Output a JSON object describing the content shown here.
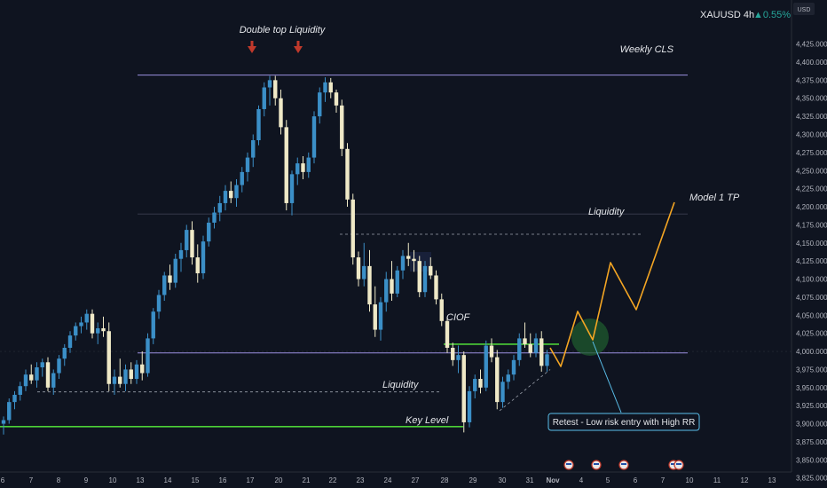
{
  "header": {
    "symbol": "XAUUSD 4h",
    "change": "▲0.55%",
    "currency": "USD"
  },
  "colors": {
    "background": "#0f1420",
    "bull_candle": "#3b8fc7",
    "bear_candle": "#efe9c7",
    "purple_line": "#9c8fe0",
    "green_line": "#4cd137",
    "projection": "#f5a623",
    "callout_border": "#5bc0eb",
    "entry_zone": "#1f5a2e",
    "marker_red": "#c0392b"
  },
  "chart_data": {
    "type": "candlestick",
    "title": "",
    "y_range": [
      3810,
      4445
    ],
    "y_ticks": [
      3825,
      3850,
      3875,
      3900,
      3925,
      3950,
      3975,
      4000,
      4025,
      4050,
      4075,
      4100,
      4125,
      4150,
      4175,
      4200,
      4225,
      4250,
      4275,
      4300,
      4325,
      4350,
      4375,
      4400,
      4425
    ],
    "x_ticks": [
      "6",
      "7",
      "8",
      "9",
      "10",
      "13",
      "14",
      "15",
      "16",
      "17",
      "20",
      "21",
      "22",
      "23",
      "24",
      "27",
      "28",
      "29",
      "30",
      "31",
      "Nov",
      "4",
      "5",
      "6",
      "7",
      "10",
      "11",
      "12",
      "13"
    ],
    "candles": [
      {
        "t": 0,
        "o": 3900,
        "h": 3910,
        "l": 3885,
        "c": 3905
      },
      {
        "t": 1,
        "o": 3905,
        "h": 3935,
        "l": 3900,
        "c": 3930
      },
      {
        "t": 2,
        "o": 3930,
        "h": 3945,
        "l": 3920,
        "c": 3940
      },
      {
        "t": 3,
        "o": 3940,
        "h": 3958,
        "l": 3932,
        "c": 3952
      },
      {
        "t": 4,
        "o": 3952,
        "h": 3975,
        "l": 3945,
        "c": 3968
      },
      {
        "t": 5,
        "o": 3968,
        "h": 3982,
        "l": 3955,
        "c": 3960
      },
      {
        "t": 6,
        "o": 3960,
        "h": 3985,
        "l": 3950,
        "c": 3978
      },
      {
        "t": 7,
        "o": 3978,
        "h": 3990,
        "l": 3965,
        "c": 3985
      },
      {
        "t": 8,
        "o": 3985,
        "h": 3992,
        "l": 3945,
        "c": 3950
      },
      {
        "t": 9,
        "o": 3950,
        "h": 3975,
        "l": 3940,
        "c": 3970
      },
      {
        "t": 10,
        "o": 3970,
        "h": 3995,
        "l": 3962,
        "c": 3990
      },
      {
        "t": 11,
        "o": 3990,
        "h": 4010,
        "l": 3980,
        "c": 4005
      },
      {
        "t": 12,
        "o": 4005,
        "h": 4028,
        "l": 3998,
        "c": 4022
      },
      {
        "t": 13,
        "o": 4022,
        "h": 4040,
        "l": 4015,
        "c": 4035
      },
      {
        "t": 14,
        "o": 4035,
        "h": 4048,
        "l": 4025,
        "c": 4040
      },
      {
        "t": 15,
        "o": 4040,
        "h": 4058,
        "l": 4030,
        "c": 4052
      },
      {
        "t": 16,
        "o": 4052,
        "h": 4058,
        "l": 4018,
        "c": 4025
      },
      {
        "t": 17,
        "o": 4025,
        "h": 4040,
        "l": 4010,
        "c": 4032
      },
      {
        "t": 18,
        "o": 4032,
        "h": 4048,
        "l": 4020,
        "c": 4028
      },
      {
        "t": 19,
        "o": 4028,
        "h": 4040,
        "l": 3945,
        "c": 3955
      },
      {
        "t": 20,
        "o": 3955,
        "h": 3975,
        "l": 3940,
        "c": 3965
      },
      {
        "t": 21,
        "o": 3965,
        "h": 3990,
        "l": 3950,
        "c": 3955
      },
      {
        "t": 22,
        "o": 3955,
        "h": 3982,
        "l": 3945,
        "c": 3975
      },
      {
        "t": 23,
        "o": 3975,
        "h": 3985,
        "l": 3955,
        "c": 3962
      },
      {
        "t": 24,
        "o": 3962,
        "h": 3988,
        "l": 3955,
        "c": 3982
      },
      {
        "t": 25,
        "o": 3982,
        "h": 4000,
        "l": 3960,
        "c": 3970
      },
      {
        "t": 26,
        "o": 3970,
        "h": 4025,
        "l": 3965,
        "c": 4018
      },
      {
        "t": 27,
        "o": 4018,
        "h": 4060,
        "l": 4010,
        "c": 4055
      },
      {
        "t": 28,
        "o": 4055,
        "h": 4085,
        "l": 4045,
        "c": 4078
      },
      {
        "t": 29,
        "o": 4078,
        "h": 4110,
        "l": 4070,
        "c": 4105
      },
      {
        "t": 30,
        "o": 4105,
        "h": 4120,
        "l": 4085,
        "c": 4095
      },
      {
        "t": 31,
        "o": 4095,
        "h": 4135,
        "l": 4088,
        "c": 4128
      },
      {
        "t": 32,
        "o": 4128,
        "h": 4150,
        "l": 4110,
        "c": 4140
      },
      {
        "t": 33,
        "o": 4140,
        "h": 4175,
        "l": 4130,
        "c": 4168
      },
      {
        "t": 34,
        "o": 4168,
        "h": 4180,
        "l": 4120,
        "c": 4130
      },
      {
        "t": 35,
        "o": 4130,
        "h": 4148,
        "l": 4095,
        "c": 4108
      },
      {
        "t": 36,
        "o": 4108,
        "h": 4160,
        "l": 4100,
        "c": 4152
      },
      {
        "t": 37,
        "o": 4152,
        "h": 4185,
        "l": 4145,
        "c": 4178
      },
      {
        "t": 38,
        "o": 4178,
        "h": 4200,
        "l": 4170,
        "c": 4192
      },
      {
        "t": 39,
        "o": 4192,
        "h": 4215,
        "l": 4180,
        "c": 4205
      },
      {
        "t": 40,
        "o": 4205,
        "h": 4230,
        "l": 4195,
        "c": 4222
      },
      {
        "t": 41,
        "o": 4222,
        "h": 4235,
        "l": 4205,
        "c": 4212
      },
      {
        "t": 42,
        "o": 4212,
        "h": 4238,
        "l": 4200,
        "c": 4230
      },
      {
        "t": 43,
        "o": 4230,
        "h": 4255,
        "l": 4220,
        "c": 4248
      },
      {
        "t": 44,
        "o": 4248,
        "h": 4275,
        "l": 4235,
        "c": 4268
      },
      {
        "t": 45,
        "o": 4268,
        "h": 4300,
        "l": 4255,
        "c": 4292
      },
      {
        "t": 46,
        "o": 4292,
        "h": 4340,
        "l": 4285,
        "c": 4335
      },
      {
        "t": 47,
        "o": 4335,
        "h": 4372,
        "l": 4325,
        "c": 4365
      },
      {
        "t": 48,
        "o": 4365,
        "h": 4381,
        "l": 4340,
        "c": 4375
      },
      {
        "t": 49,
        "o": 4375,
        "h": 4381,
        "l": 4340,
        "c": 4350
      },
      {
        "t": 50,
        "o": 4350,
        "h": 4362,
        "l": 4300,
        "c": 4310
      },
      {
        "t": 51,
        "o": 4310,
        "h": 4320,
        "l": 4195,
        "c": 4205
      },
      {
        "t": 52,
        "o": 4205,
        "h": 4250,
        "l": 4188,
        "c": 4245
      },
      {
        "t": 53,
        "o": 4245,
        "h": 4268,
        "l": 4230,
        "c": 4260
      },
      {
        "t": 54,
        "o": 4260,
        "h": 4270,
        "l": 4238,
        "c": 4248
      },
      {
        "t": 55,
        "o": 4248,
        "h": 4275,
        "l": 4240,
        "c": 4268
      },
      {
        "t": 56,
        "o": 4268,
        "h": 4332,
        "l": 4260,
        "c": 4325
      },
      {
        "t": 57,
        "o": 4325,
        "h": 4365,
        "l": 4315,
        "c": 4358
      },
      {
        "t": 58,
        "o": 4358,
        "h": 4379,
        "l": 4345,
        "c": 4372
      },
      {
        "t": 59,
        "o": 4372,
        "h": 4378,
        "l": 4350,
        "c": 4358
      },
      {
        "t": 60,
        "o": 4358,
        "h": 4362,
        "l": 4330,
        "c": 4340
      },
      {
        "t": 61,
        "o": 4340,
        "h": 4348,
        "l": 4270,
        "c": 4280
      },
      {
        "t": 62,
        "o": 4280,
        "h": 4288,
        "l": 4200,
        "c": 4210
      },
      {
        "t": 63,
        "o": 4210,
        "h": 4218,
        "l": 4120,
        "c": 4130
      },
      {
        "t": 64,
        "o": 4130,
        "h": 4138,
        "l": 4090,
        "c": 4100
      },
      {
        "t": 65,
        "o": 4100,
        "h": 4150,
        "l": 4090,
        "c": 4118
      },
      {
        "t": 66,
        "o": 4118,
        "h": 4140,
        "l": 4055,
        "c": 4065
      },
      {
        "t": 67,
        "o": 4065,
        "h": 4090,
        "l": 4020,
        "c": 4030
      },
      {
        "t": 68,
        "o": 4030,
        "h": 4075,
        "l": 4015,
        "c": 4068
      },
      {
        "t": 69,
        "o": 4068,
        "h": 4110,
        "l": 4055,
        "c": 4100
      },
      {
        "t": 70,
        "o": 4100,
        "h": 4125,
        "l": 4070,
        "c": 4080
      },
      {
        "t": 71,
        "o": 4080,
        "h": 4118,
        "l": 4075,
        "c": 4112
      },
      {
        "t": 72,
        "o": 4112,
        "h": 4140,
        "l": 4100,
        "c": 4132
      },
      {
        "t": 73,
        "o": 4132,
        "h": 4150,
        "l": 4118,
        "c": 4128
      },
      {
        "t": 74,
        "o": 4128,
        "h": 4140,
        "l": 4110,
        "c": 4125
      },
      {
        "t": 75,
        "o": 4125,
        "h": 4132,
        "l": 4075,
        "c": 4082
      },
      {
        "t": 76,
        "o": 4082,
        "h": 4125,
        "l": 4075,
        "c": 4118
      },
      {
        "t": 77,
        "o": 4118,
        "h": 4130,
        "l": 4100,
        "c": 4105
      },
      {
        "t": 78,
        "o": 4105,
        "h": 4112,
        "l": 4065,
        "c": 4072
      },
      {
        "t": 79,
        "o": 4072,
        "h": 4080,
        "l": 4035,
        "c": 4042
      },
      {
        "t": 80,
        "o": 4042,
        "h": 4048,
        "l": 3998,
        "c": 4005
      },
      {
        "t": 81,
        "o": 4005,
        "h": 4012,
        "l": 3980,
        "c": 3988
      },
      {
        "t": 82,
        "o": 3988,
        "h": 4008,
        "l": 3970,
        "c": 3995
      },
      {
        "t": 83,
        "o": 3995,
        "h": 4000,
        "l": 3888,
        "c": 3902
      },
      {
        "t": 84,
        "o": 3902,
        "h": 3952,
        "l": 3895,
        "c": 3945
      },
      {
        "t": 85,
        "o": 3945,
        "h": 3968,
        "l": 3935,
        "c": 3962
      },
      {
        "t": 86,
        "o": 3962,
        "h": 3975,
        "l": 3942,
        "c": 3950
      },
      {
        "t": 87,
        "o": 3950,
        "h": 4015,
        "l": 3945,
        "c": 4008
      },
      {
        "t": 88,
        "o": 4008,
        "h": 4018,
        "l": 3985,
        "c": 3992
      },
      {
        "t": 89,
        "o": 3992,
        "h": 4002,
        "l": 3920,
        "c": 3930
      },
      {
        "t": 90,
        "o": 3930,
        "h": 3965,
        "l": 3922,
        "c": 3958
      },
      {
        "t": 91,
        "o": 3958,
        "h": 3975,
        "l": 3948,
        "c": 3968
      },
      {
        "t": 92,
        "o": 3968,
        "h": 3995,
        "l": 3960,
        "c": 3988
      },
      {
        "t": 93,
        "o": 3988,
        "h": 4025,
        "l": 3980,
        "c": 4018
      },
      {
        "t": 94,
        "o": 4018,
        "h": 4040,
        "l": 4005,
        "c": 4010
      },
      {
        "t": 95,
        "o": 4010,
        "h": 4025,
        "l": 3992,
        "c": 3998
      },
      {
        "t": 96,
        "o": 3998,
        "h": 4025,
        "l": 3992,
        "c": 4018
      },
      {
        "t": 97,
        "o": 4018,
        "h": 4028,
        "l": 3972,
        "c": 3980
      },
      {
        "t": 98,
        "o": 3980,
        "h": 4002,
        "l": 3972,
        "c": 3996
      }
    ],
    "levels": [
      {
        "name": "Weekly CLS",
        "price": 4382
      },
      {
        "name": "Model 1 TP",
        "price": 4190
      },
      {
        "name": "Liquidity",
        "price": 4162
      },
      {
        "name": "",
        "price": 3998
      },
      {
        "name": "CIOF",
        "price": 4010
      },
      {
        "name": "Liquidity",
        "price": 3944
      },
      {
        "name": "Key Level",
        "price": 3896
      }
    ],
    "projection": [
      {
        "t": 99,
        "p": 3975
      },
      {
        "t": 102,
        "p": 3955
      },
      {
        "t": 107,
        "p": 4030
      },
      {
        "t": 110,
        "p": 3990
      },
      {
        "t": 117,
        "p": 4100
      },
      {
        "t": 126,
        "p": 4038
      },
      {
        "t": 139,
        "p": 4185
      }
    ],
    "annotations": {
      "double_top": "Double top Liquidity",
      "weekly_cls": "Weekly CLS",
      "model_tp": "Model 1 TP",
      "liquidity_upper": "Liquidity",
      "ciof": "CIOF",
      "liquidity_lower": "Liquidity",
      "key_level": "Key Level",
      "callout": "Retest - Low risk entry with High RR"
    }
  }
}
